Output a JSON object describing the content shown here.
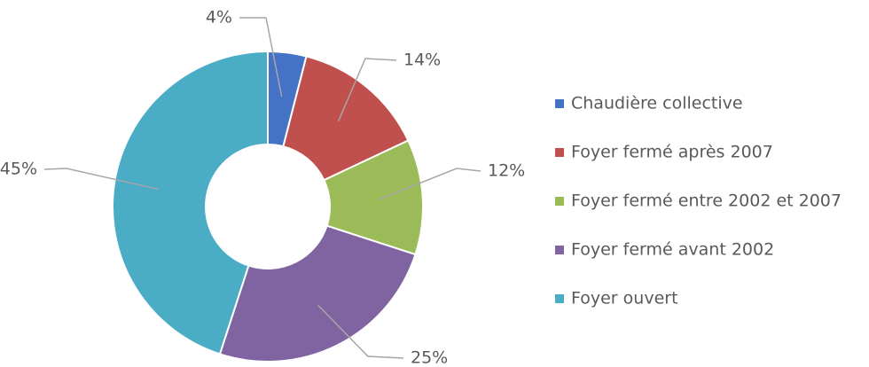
{
  "chart_data": {
    "type": "donut",
    "categories": [
      "Chaudière collective",
      "Foyer fermé après 2007",
      "Foyer fermé entre 2002 et 2007",
      "Foyer fermé avant 2002",
      "Foyer ouvert"
    ],
    "values": [
      4,
      14,
      12,
      25,
      45
    ],
    "value_labels": [
      "4%",
      "14%",
      "12%",
      "25%",
      "45%"
    ],
    "colors": [
      "#4472c4",
      "#c0504d",
      "#9bbb59",
      "#8064a2",
      "#4bacc6"
    ],
    "legend": "right"
  }
}
